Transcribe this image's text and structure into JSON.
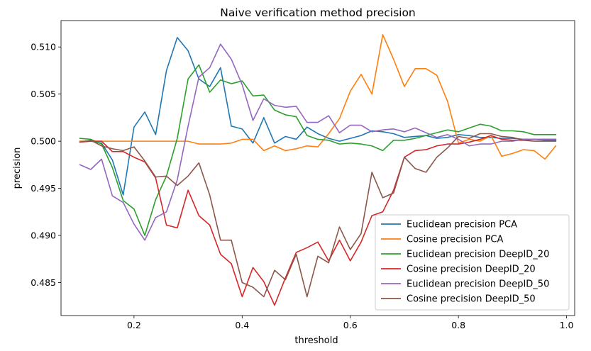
{
  "chart_data": {
    "type": "line",
    "title": "Naive verification method precision",
    "xlabel": "threshold",
    "ylabel": "precision",
    "xlim": [
      0.065,
      1.015
    ],
    "ylim": [
      0.4815,
      0.5128
    ],
    "xticks": [
      0.2,
      0.4,
      0.6,
      0.8,
      1.0
    ],
    "xtick_labels": [
      "0.2",
      "0.4",
      "0.6",
      "0.8",
      "1.0"
    ],
    "yticks": [
      0.485,
      0.49,
      0.495,
      0.5,
      0.505,
      0.51
    ],
    "ytick_labels": [
      "0.485",
      "0.490",
      "0.495",
      "0.500",
      "0.505",
      "0.510"
    ],
    "grid": false,
    "legend_position": "lower-right",
    "x": [
      0.1,
      0.12,
      0.14,
      0.16,
      0.18,
      0.2,
      0.22,
      0.24,
      0.26,
      0.28,
      0.3,
      0.32,
      0.34,
      0.36,
      0.38,
      0.4,
      0.42,
      0.44,
      0.46,
      0.48,
      0.5,
      0.52,
      0.54,
      0.56,
      0.58,
      0.6,
      0.62,
      0.64,
      0.66,
      0.68,
      0.7,
      0.72,
      0.74,
      0.76,
      0.78,
      0.8,
      0.82,
      0.84,
      0.86,
      0.88,
      0.9,
      0.92,
      0.94,
      0.96,
      0.98
    ],
    "series": [
      {
        "name": "Euclidean precision PCA",
        "color": "#1f77b4",
        "values": [
          0.5,
          0.5,
          0.4998,
          0.498,
          0.4943,
          0.5015,
          0.5031,
          0.5007,
          0.5075,
          0.511,
          0.5096,
          0.5066,
          0.5058,
          0.5078,
          0.5016,
          0.5013,
          0.4998,
          0.5025,
          0.4998,
          0.5005,
          0.5002,
          0.5015,
          0.5008,
          0.5003,
          0.5,
          0.5003,
          0.5006,
          0.5011,
          0.501,
          0.5008,
          0.5004,
          0.5005,
          0.5006,
          0.5003,
          0.5004,
          0.5007,
          0.5006,
          0.5004,
          0.5004,
          0.5003,
          0.5003,
          0.5002,
          0.5002,
          0.5001,
          0.5001
        ]
      },
      {
        "name": "Cosine precision PCA",
        "color": "#ff7f0e",
        "values": [
          0.5,
          0.5,
          0.5,
          0.5,
          0.5,
          0.5,
          0.5,
          0.5,
          0.5,
          0.5,
          0.5,
          0.4997,
          0.4997,
          0.4997,
          0.4998,
          0.5002,
          0.5002,
          0.499,
          0.4995,
          0.499,
          0.4992,
          0.4995,
          0.4994,
          0.5008,
          0.5024,
          0.5053,
          0.5071,
          0.505,
          0.5113,
          0.5087,
          0.5058,
          0.5077,
          0.5077,
          0.507,
          0.5042,
          0.4998,
          0.5002,
          0.5,
          0.5006,
          0.4984,
          0.4987,
          0.4991,
          0.499,
          0.4981,
          0.4995
        ]
      },
      {
        "name": "Euclidean precision DeepID_20",
        "color": "#2ca02c",
        "values": [
          0.5003,
          0.5002,
          0.4997,
          0.4972,
          0.4937,
          0.4928,
          0.49,
          0.4938,
          0.4963,
          0.5003,
          0.5066,
          0.5081,
          0.5052,
          0.5065,
          0.5061,
          0.5064,
          0.5048,
          0.5049,
          0.5033,
          0.5028,
          0.5026,
          0.5006,
          0.5002,
          0.5001,
          0.4997,
          0.4998,
          0.4997,
          0.4995,
          0.499,
          0.5001,
          0.5001,
          0.5003,
          0.5006,
          0.5009,
          0.5012,
          0.501,
          0.5014,
          0.5018,
          0.5016,
          0.5011,
          0.5011,
          0.501,
          0.5007,
          0.5007,
          0.5007
        ]
      },
      {
        "name": "Cosine precision DeepID_20",
        "color": "#d62728",
        "values": [
          0.4999,
          0.5,
          0.5,
          0.4989,
          0.4989,
          0.4983,
          0.4978,
          0.4961,
          0.4911,
          0.4908,
          0.4948,
          0.4921,
          0.4911,
          0.488,
          0.487,
          0.4835,
          0.4866,
          0.4851,
          0.4826,
          0.4855,
          0.4882,
          0.4887,
          0.4893,
          0.4873,
          0.4895,
          0.4873,
          0.4893,
          0.4921,
          0.4925,
          0.4948,
          0.4983,
          0.499,
          0.4991,
          0.4995,
          0.4997,
          0.4997,
          0.4999,
          0.5002,
          0.5006,
          0.5002,
          0.5001,
          0.5001,
          0.5002,
          0.5002,
          0.5002
        ]
      },
      {
        "name": "Euclidean precision DeepID_50",
        "color": "#9467bd",
        "values": [
          0.4975,
          0.497,
          0.4981,
          0.4942,
          0.4935,
          0.4912,
          0.4895,
          0.4919,
          0.4925,
          0.4959,
          0.5016,
          0.5068,
          0.5078,
          0.5103,
          0.5087,
          0.506,
          0.5022,
          0.5045,
          0.5038,
          0.5036,
          0.5037,
          0.502,
          0.502,
          0.5027,
          0.5009,
          0.5017,
          0.5017,
          0.501,
          0.5012,
          0.5013,
          0.501,
          0.5014,
          0.5009,
          0.5004,
          0.5007,
          0.5002,
          0.4995,
          0.4997,
          0.4997,
          0.5,
          0.5,
          0.5002,
          0.5002,
          0.5002,
          0.5002
        ]
      },
      {
        "name": "Cosine precision DeepID_50",
        "color": "#8c564b",
        "values": [
          0.4999,
          0.5001,
          0.4995,
          0.4992,
          0.499,
          0.4994,
          0.4979,
          0.4962,
          0.4963,
          0.4953,
          0.4963,
          0.4977,
          0.4943,
          0.4895,
          0.4895,
          0.485,
          0.4845,
          0.4835,
          0.4863,
          0.4853,
          0.488,
          0.4835,
          0.4878,
          0.4871,
          0.4909,
          0.4885,
          0.4902,
          0.4967,
          0.494,
          0.4945,
          0.4983,
          0.4971,
          0.4967,
          0.4983,
          0.4993,
          0.5005,
          0.5003,
          0.5008,
          0.5008,
          0.5005,
          0.5004,
          0.5001,
          0.5,
          0.5,
          0.5
        ]
      }
    ]
  }
}
